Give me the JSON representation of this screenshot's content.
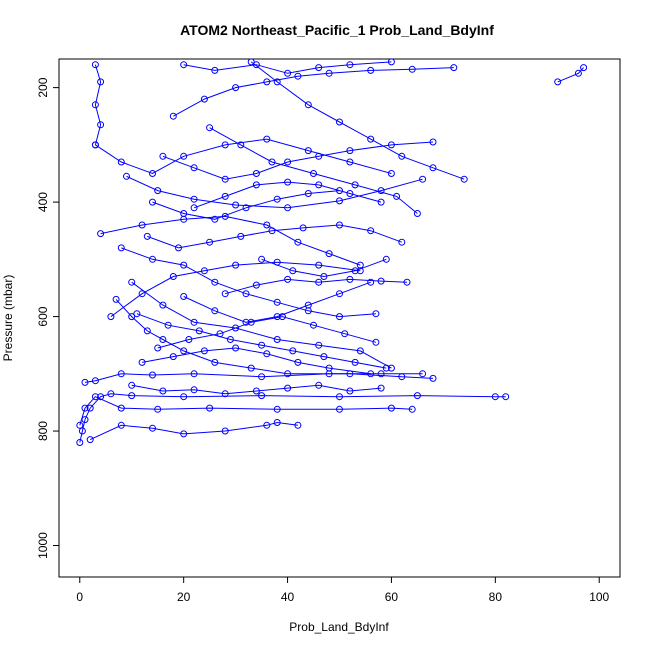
{
  "chart_data": {
    "type": "scatter",
    "title": "ATOM2 Northeast_Pacific_1 Prob_Land_BdyInf",
    "xlabel": "Prob_Land_BdyInf",
    "ylabel": "Pressure (mbar)",
    "xlim": [
      -4,
      104
    ],
    "ylim": [
      1055,
      150
    ],
    "y_reversed": true,
    "x_ticks": [
      0,
      20,
      40,
      60,
      80,
      100
    ],
    "y_ticks": [
      200,
      400,
      600,
      800,
      1000
    ],
    "grid": false,
    "series_color": "#0000ff",
    "marker": "open-circle",
    "series": [
      {
        "points": [
          [
            0,
            820
          ],
          [
            0.5,
            800
          ],
          [
            1,
            780
          ],
          [
            2,
            760
          ],
          [
            4,
            740
          ],
          [
            6,
            735
          ],
          [
            10,
            738
          ],
          [
            20,
            740
          ],
          [
            35,
            738
          ],
          [
            50,
            740
          ],
          [
            65,
            738
          ],
          [
            80,
            740
          ],
          [
            82,
            740
          ]
        ]
      },
      {
        "points": [
          [
            0,
            790
          ],
          [
            1,
            760
          ],
          [
            3,
            740
          ],
          [
            8,
            760
          ],
          [
            15,
            762
          ],
          [
            25,
            760
          ],
          [
            38,
            762
          ],
          [
            50,
            762
          ],
          [
            60,
            760
          ],
          [
            64,
            762
          ]
        ]
      },
      {
        "points": [
          [
            1,
            715
          ],
          [
            3,
            712
          ],
          [
            8,
            700
          ],
          [
            14,
            702
          ],
          [
            22,
            700
          ],
          [
            35,
            705
          ],
          [
            48,
            700
          ],
          [
            58,
            700
          ],
          [
            66,
            700
          ]
        ]
      },
      {
        "points": [
          [
            2,
            815
          ],
          [
            8,
            790
          ],
          [
            14,
            795
          ],
          [
            20,
            805
          ],
          [
            28,
            800
          ],
          [
            36,
            790
          ],
          [
            38,
            785
          ],
          [
            42,
            790
          ]
        ]
      },
      {
        "points": [
          [
            7,
            570
          ],
          [
            10,
            600
          ],
          [
            13,
            625
          ],
          [
            16,
            640
          ],
          [
            20,
            660
          ],
          [
            26,
            680
          ],
          [
            33,
            690
          ],
          [
            40,
            700
          ],
          [
            52,
            700
          ],
          [
            62,
            705
          ],
          [
            68,
            708
          ]
        ]
      },
      {
        "points": [
          [
            6,
            600
          ],
          [
            12,
            560
          ],
          [
            18,
            530
          ],
          [
            24,
            520
          ],
          [
            30,
            510
          ],
          [
            38,
            505
          ],
          [
            46,
            510
          ],
          [
            54,
            520
          ]
        ]
      },
      {
        "points": [
          [
            10,
            540
          ],
          [
            16,
            580
          ],
          [
            22,
            610
          ],
          [
            30,
            620
          ],
          [
            38,
            640
          ],
          [
            46,
            650
          ],
          [
            54,
            660
          ],
          [
            60,
            690
          ]
        ]
      },
      {
        "points": [
          [
            4,
            455
          ],
          [
            12,
            440
          ],
          [
            20,
            430
          ],
          [
            28,
            425
          ],
          [
            36,
            440
          ],
          [
            42,
            470
          ],
          [
            48,
            490
          ],
          [
            54,
            510
          ]
        ]
      },
      {
        "points": [
          [
            9,
            355
          ],
          [
            15,
            380
          ],
          [
            22,
            395
          ],
          [
            30,
            405
          ],
          [
            40,
            410
          ],
          [
            50,
            398
          ],
          [
            58,
            380
          ],
          [
            66,
            360
          ]
        ]
      },
      {
        "points": [
          [
            3,
            300
          ],
          [
            8,
            330
          ],
          [
            14,
            350
          ],
          [
            20,
            320
          ],
          [
            28,
            300
          ],
          [
            36,
            290
          ],
          [
            44,
            310
          ],
          [
            52,
            330
          ],
          [
            60,
            350
          ]
        ]
      },
      {
        "points": [
          [
            3,
            160
          ],
          [
            4,
            190
          ],
          [
            3,
            230
          ],
          [
            4,
            265
          ],
          [
            3,
            300
          ]
        ]
      },
      {
        "points": [
          [
            18,
            250
          ],
          [
            24,
            220
          ],
          [
            30,
            200
          ],
          [
            36,
            190
          ],
          [
            42,
            180
          ],
          [
            48,
            175
          ],
          [
            56,
            170
          ],
          [
            64,
            168
          ],
          [
            72,
            165
          ]
        ]
      },
      {
        "points": [
          [
            20,
            160
          ],
          [
            26,
            170
          ],
          [
            34,
            160
          ],
          [
            40,
            175
          ],
          [
            46,
            165
          ],
          [
            52,
            160
          ],
          [
            60,
            155
          ]
        ]
      },
      {
        "points": [
          [
            33,
            155
          ],
          [
            38,
            190
          ],
          [
            44,
            230
          ],
          [
            50,
            260
          ],
          [
            56,
            290
          ],
          [
            62,
            320
          ],
          [
            68,
            340
          ],
          [
            74,
            360
          ]
        ]
      },
      {
        "points": [
          [
            25,
            270
          ],
          [
            31,
            300
          ],
          [
            37,
            330
          ],
          [
            45,
            350
          ],
          [
            53,
            370
          ],
          [
            61,
            390
          ],
          [
            65,
            420
          ]
        ]
      },
      {
        "points": [
          [
            13,
            460
          ],
          [
            19,
            480
          ],
          [
            25,
            470
          ],
          [
            31,
            460
          ],
          [
            37,
            450
          ],
          [
            43,
            445
          ],
          [
            50,
            440
          ],
          [
            56,
            450
          ],
          [
            62,
            470
          ]
        ]
      },
      {
        "points": [
          [
            8,
            480
          ],
          [
            14,
            500
          ],
          [
            20,
            510
          ],
          [
            26,
            540
          ],
          [
            32,
            560
          ],
          [
            38,
            575
          ],
          [
            44,
            590
          ],
          [
            50,
            600
          ],
          [
            57,
            595
          ]
        ]
      },
      {
        "points": [
          [
            12,
            680
          ],
          [
            18,
            670
          ],
          [
            24,
            660
          ],
          [
            30,
            655
          ],
          [
            36,
            665
          ],
          [
            42,
            680
          ],
          [
            48,
            690
          ],
          [
            56,
            700
          ]
        ]
      },
      {
        "points": [
          [
            20,
            565
          ],
          [
            26,
            590
          ],
          [
            32,
            610
          ],
          [
            38,
            600
          ],
          [
            44,
            580
          ],
          [
            50,
            560
          ],
          [
            56,
            540
          ]
        ]
      },
      {
        "points": [
          [
            10,
            720
          ],
          [
            16,
            730
          ],
          [
            22,
            728
          ],
          [
            28,
            735
          ],
          [
            34,
            730
          ],
          [
            40,
            725
          ],
          [
            46,
            720
          ],
          [
            52,
            730
          ],
          [
            58,
            725
          ]
        ]
      },
      {
        "points": [
          [
            15,
            655
          ],
          [
            21,
            640
          ],
          [
            27,
            630
          ],
          [
            33,
            610
          ],
          [
            39,
            600
          ],
          [
            45,
            615
          ],
          [
            51,
            630
          ],
          [
            57,
            645
          ]
        ]
      },
      {
        "points": [
          [
            22,
            410
          ],
          [
            28,
            390
          ],
          [
            34,
            370
          ],
          [
            40,
            365
          ],
          [
            46,
            370
          ],
          [
            52,
            385
          ],
          [
            58,
            400
          ]
        ]
      },
      {
        "points": [
          [
            28,
            560
          ],
          [
            34,
            545
          ],
          [
            40,
            535
          ],
          [
            46,
            540
          ],
          [
            52,
            535
          ],
          [
            58,
            538
          ],
          [
            63,
            540
          ]
        ]
      },
      {
        "points": [
          [
            92,
            190
          ],
          [
            96,
            175
          ],
          [
            97,
            165
          ]
        ]
      },
      {
        "points": [
          [
            11,
            595
          ],
          [
            17,
            615
          ],
          [
            23,
            625
          ],
          [
            29,
            640
          ],
          [
            35,
            650
          ],
          [
            41,
            660
          ],
          [
            47,
            670
          ],
          [
            53,
            680
          ],
          [
            59,
            690
          ]
        ]
      },
      {
        "points": [
          [
            16,
            320
          ],
          [
            22,
            340
          ],
          [
            28,
            360
          ],
          [
            34,
            350
          ],
          [
            40,
            330
          ],
          [
            46,
            320
          ],
          [
            52,
            310
          ],
          [
            60,
            300
          ],
          [
            68,
            295
          ]
        ]
      },
      {
        "points": [
          [
            35,
            500
          ],
          [
            41,
            520
          ],
          [
            47,
            530
          ],
          [
            53,
            520
          ],
          [
            59,
            500
          ]
        ]
      },
      {
        "points": [
          [
            14,
            400
          ],
          [
            20,
            420
          ],
          [
            26,
            430
          ],
          [
            32,
            410
          ],
          [
            38,
            395
          ],
          [
            44,
            385
          ],
          [
            50,
            380
          ]
        ]
      }
    ]
  }
}
